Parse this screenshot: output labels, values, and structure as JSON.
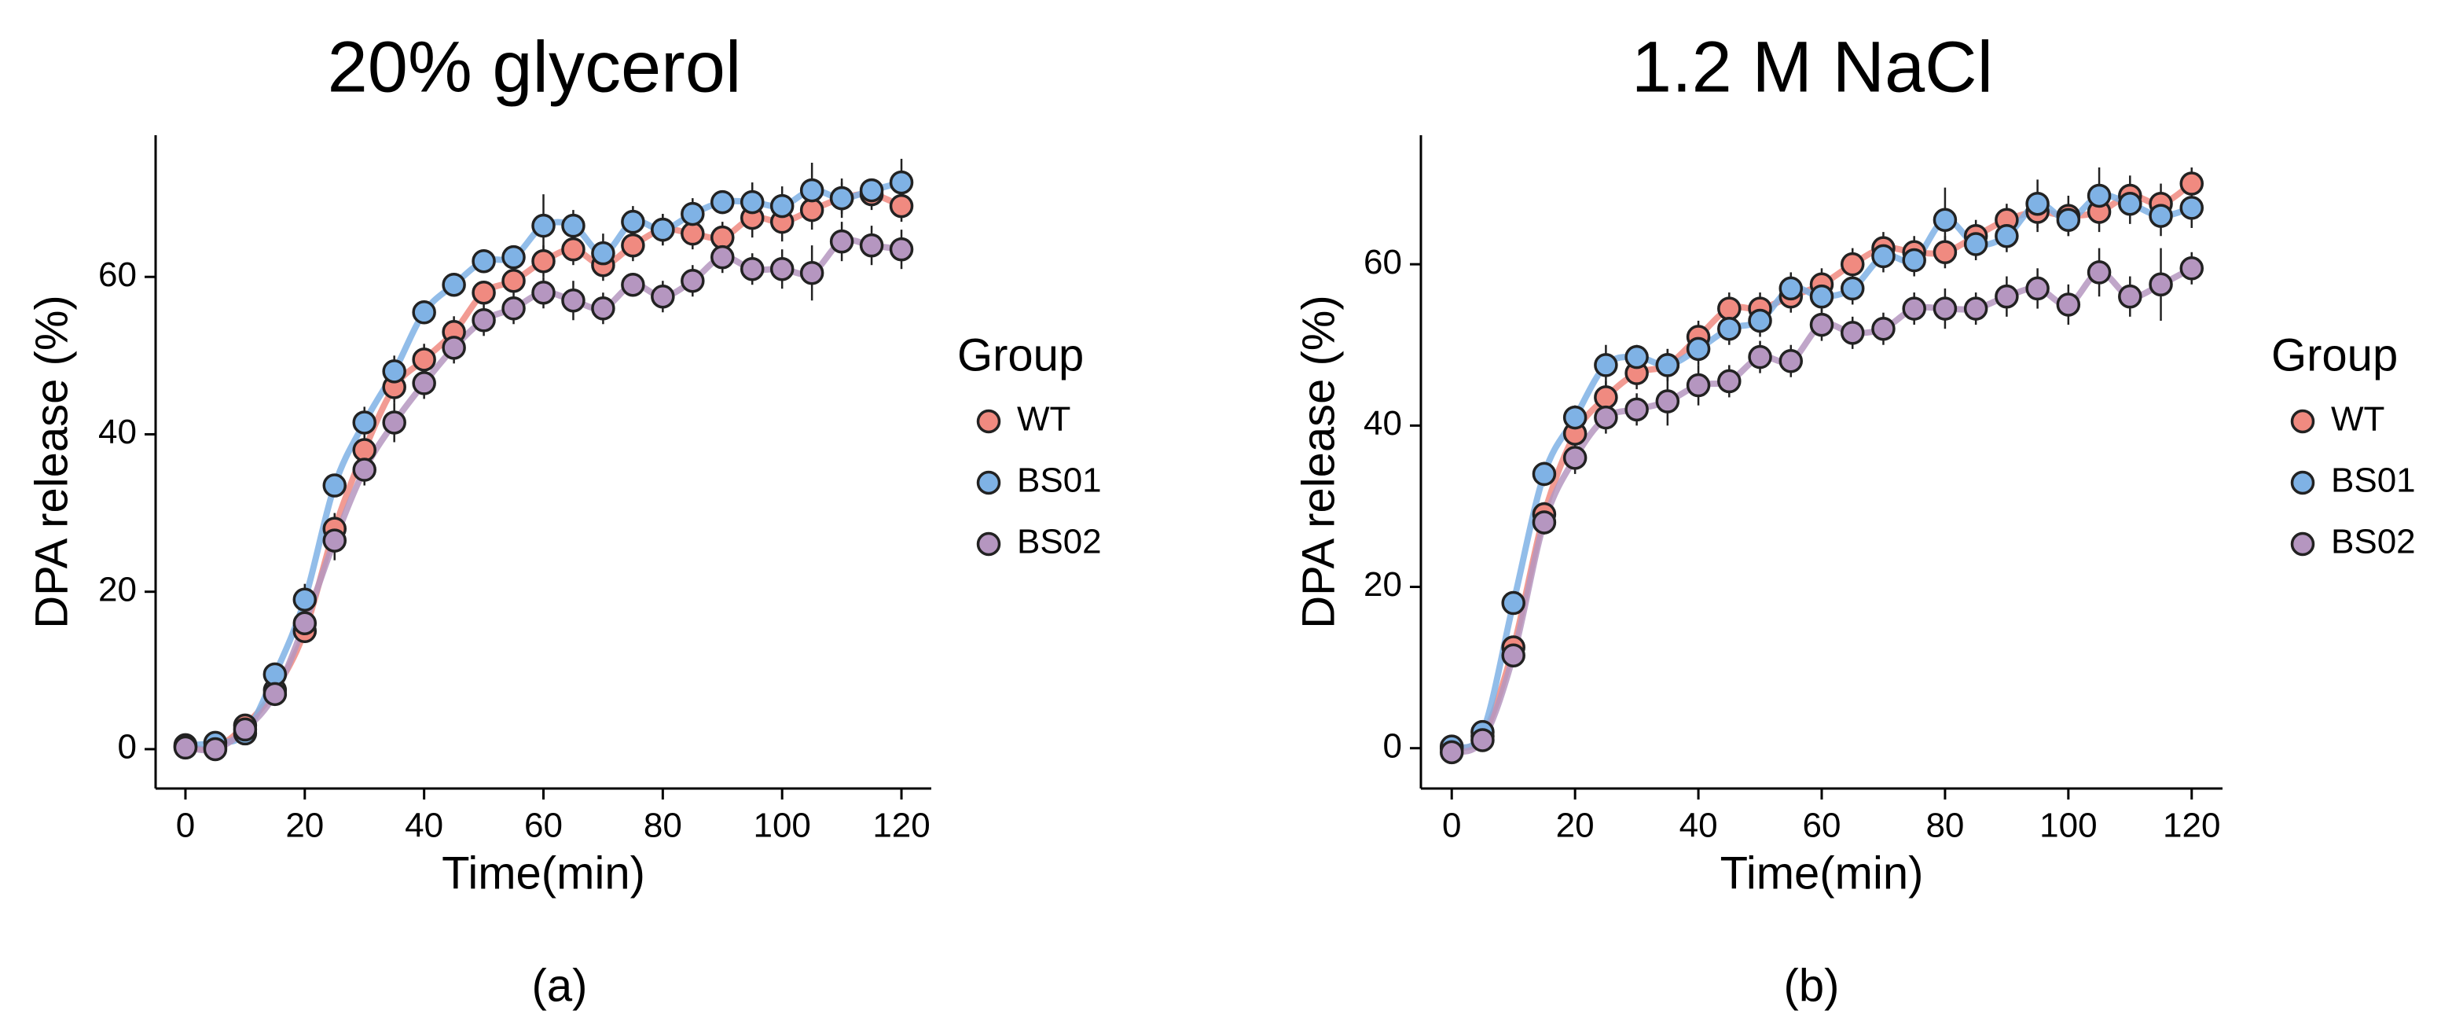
{
  "chart_data": [
    {
      "type": "scatter",
      "title": "20% glycerol",
      "xlabel": "Time(min)",
      "ylabel": "DPA release (%)",
      "panel_label": "(a)",
      "xlim": [
        -5,
        125
      ],
      "ylim": [
        -5,
        78
      ],
      "xticks": [
        0,
        20,
        40,
        60,
        80,
        100,
        120
      ],
      "yticks": [
        0,
        20,
        40,
        60
      ],
      "legend": {
        "title": "Group",
        "position": "right"
      },
      "x": [
        0,
        5,
        10,
        15,
        20,
        25,
        30,
        35,
        40,
        45,
        50,
        55,
        60,
        65,
        70,
        75,
        80,
        85,
        90,
        95,
        100,
        105,
        110,
        115,
        120
      ],
      "series": [
        {
          "name": "WT",
          "color": "#F08A80",
          "values": [
            0.3,
            0.2,
            3.0,
            7.5,
            15,
            28,
            38,
            46,
            49.5,
            53,
            58,
            59.5,
            62,
            63.5,
            61.5,
            64,
            66,
            65.5,
            65,
            67.5,
            67,
            68.5,
            70,
            70.5,
            69
          ],
          "errors": [
            0.5,
            0.5,
            0.8,
            1.0,
            1.5,
            2.0,
            2.0,
            2.0,
            2.0,
            2.0,
            1.5,
            1.5,
            2.0,
            2.0,
            2.0,
            2.0,
            2.0,
            2.0,
            2.0,
            2.5,
            2.5,
            2.5,
            2.0,
            2.0,
            2.0
          ]
        },
        {
          "name": "BS01",
          "color": "#7FB2E5",
          "values": [
            0.5,
            0.8,
            2.0,
            9.5,
            19,
            33.5,
            41.5,
            48,
            55.5,
            59,
            62,
            62.5,
            66.5,
            66.5,
            63,
            67,
            66,
            68,
            69.5,
            69.5,
            69,
            71,
            70,
            71,
            72
          ],
          "errors": [
            0.5,
            0.5,
            0.8,
            1.0,
            2.0,
            1.5,
            2.0,
            2.0,
            1.5,
            1.5,
            1.5,
            1.5,
            4.0,
            2.0,
            2.5,
            2.0,
            2.0,
            2.0,
            1.5,
            2.5,
            2.5,
            3.5,
            2.5,
            1.5,
            3.0
          ]
        },
        {
          "name": "BS02",
          "color": "#B596C0",
          "values": [
            0.2,
            0.0,
            2.5,
            7.0,
            16,
            26.5,
            35.5,
            41.5,
            46.5,
            51,
            54.5,
            56,
            58,
            57,
            56,
            59,
            57.5,
            59.5,
            62.5,
            61,
            61,
            60.5,
            64.5,
            64,
            63.5
          ],
          "errors": [
            0.5,
            0.5,
            0.8,
            1.0,
            2.5,
            2.5,
            2.0,
            2.5,
            2.0,
            2.0,
            2.0,
            2.0,
            2.0,
            2.5,
            2.0,
            1.5,
            2.0,
            2.0,
            2.0,
            2.0,
            2.5,
            3.5,
            2.5,
            2.5,
            2.5
          ]
        }
      ]
    },
    {
      "type": "scatter",
      "title": "1.2 M NaCl",
      "xlabel": "Time(min)",
      "ylabel": "DPA release (%)",
      "panel_label": "(b)",
      "xlim": [
        -5,
        125
      ],
      "ylim": [
        -5,
        76
      ],
      "xticks": [
        0,
        20,
        40,
        60,
        80,
        100,
        120
      ],
      "yticks": [
        0,
        20,
        40,
        60
      ],
      "legend": {
        "title": "Group",
        "position": "right"
      },
      "x": [
        0,
        5,
        10,
        15,
        20,
        25,
        30,
        35,
        40,
        45,
        50,
        55,
        60,
        65,
        70,
        75,
        80,
        85,
        90,
        95,
        100,
        105,
        110,
        115,
        120
      ],
      "series": [
        {
          "name": "WT",
          "color": "#F08A80",
          "values": [
            0.0,
            1.5,
            12.5,
            29,
            39,
            43.5,
            46.5,
            47.5,
            51,
            54.5,
            54.5,
            56,
            57.5,
            60,
            62,
            61.5,
            61.5,
            63.5,
            65.5,
            66.5,
            66,
            66.5,
            68.5,
            67.5,
            70
          ],
          "errors": [
            0.5,
            0.5,
            1.0,
            1.5,
            1.5,
            2.0,
            2.0,
            2.0,
            2.0,
            2.0,
            2.0,
            2.0,
            2.0,
            2.0,
            2.0,
            2.0,
            2.0,
            2.0,
            2.0,
            2.5,
            2.5,
            2.5,
            2.5,
            2.5,
            2.0
          ]
        },
        {
          "name": "BS01",
          "color": "#7FB2E5",
          "values": [
            0.2,
            2.0,
            18,
            34,
            41,
            47.5,
            48.5,
            47.5,
            49.5,
            52,
            53,
            57,
            56,
            57,
            61,
            60.5,
            65.5,
            62.5,
            63.5,
            67.5,
            65.5,
            68.5,
            67.5,
            66,
            67
          ],
          "errors": [
            0.5,
            0.5,
            1.0,
            1.5,
            1.5,
            2.5,
            1.5,
            2.0,
            2.0,
            2.0,
            2.0,
            2.0,
            2.0,
            2.0,
            2.0,
            2.0,
            4.0,
            2.0,
            2.0,
            3.0,
            2.0,
            3.5,
            2.5,
            2.5,
            2.5
          ]
        },
        {
          "name": "BS02",
          "color": "#B596C0",
          "values": [
            -0.5,
            1.0,
            11.5,
            28,
            36,
            41,
            42,
            43,
            45,
            45.5,
            48.5,
            48,
            52.5,
            51.5,
            52,
            54.5,
            54.5,
            54.5,
            56,
            57,
            55,
            59,
            56,
            57.5,
            59.5
          ],
          "errors": [
            0.5,
            0.5,
            1.0,
            1.5,
            2.0,
            2.0,
            2.0,
            3.0,
            2.5,
            2.0,
            2.0,
            2.0,
            2.0,
            2.0,
            2.0,
            2.0,
            2.5,
            2.0,
            2.5,
            2.5,
            2.5,
            3.0,
            2.5,
            4.5,
            2.0
          ]
        }
      ]
    }
  ]
}
